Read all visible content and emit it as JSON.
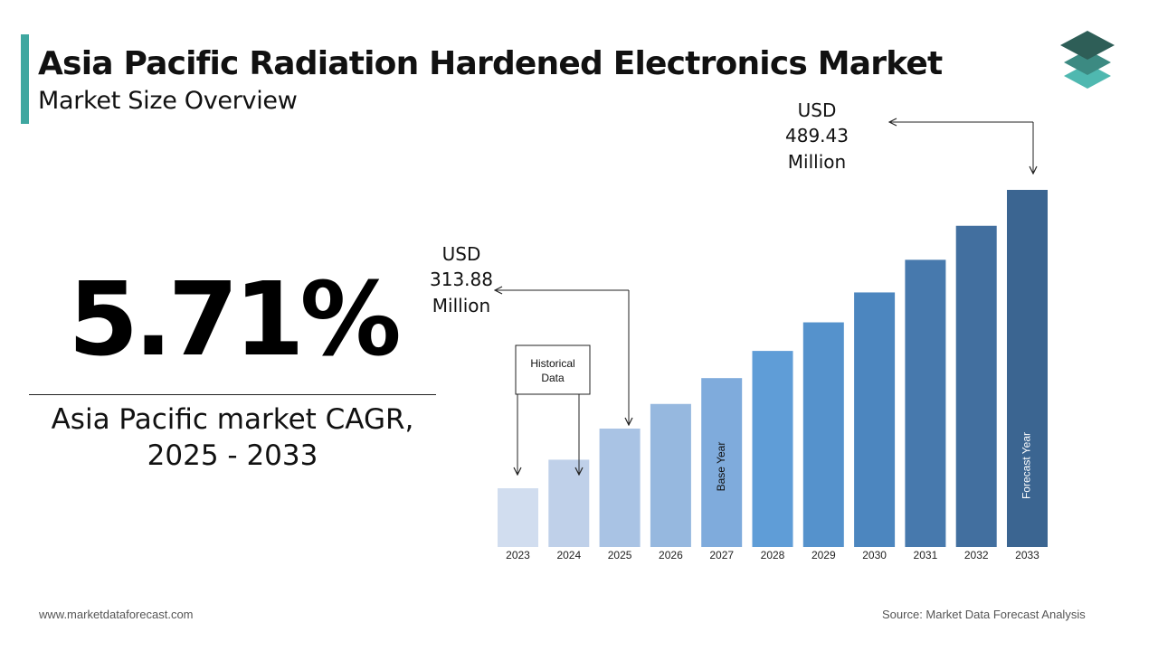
{
  "header": {
    "title": "Asia Pacific Radiation Hardened Electronics Market",
    "subtitle": "Market Size Overview",
    "accent_color": "#3fa7a0"
  },
  "logo": {
    "icon": "stacked-layers-icon",
    "colors": [
      "#2e5e57",
      "#3c8a82",
      "#4fb8b0"
    ]
  },
  "cagr": {
    "value": "5.71%",
    "label_line1": "Asia Pacific market CAGR,",
    "label_line2": "2025 - 2033"
  },
  "chart_data": {
    "type": "bar",
    "categories": [
      "2023",
      "2024",
      "2025",
      "2026",
      "2027",
      "2028",
      "2029",
      "2030",
      "2031",
      "2032",
      "2033"
    ],
    "values": [
      270.0,
      291.0,
      313.88,
      332.0,
      351.0,
      371.0,
      392.0,
      414.0,
      438.0,
      463.0,
      489.43
    ],
    "colors": [
      "#d1ddef",
      "#bfd0e9",
      "#a9c3e4",
      "#96b8df",
      "#7fabdc",
      "#5f9dd7",
      "#5592cc",
      "#4c86bf",
      "#4779ad",
      "#426f9f",
      "#3b6591"
    ],
    "bar_labels": {
      "2027": "Base Year",
      "2033": "Forecast Year"
    },
    "callouts": [
      {
        "year": "2025",
        "line1": "USD",
        "line2": "313.88",
        "line3": "Million"
      },
      {
        "year": "2033",
        "line1": "USD",
        "line2": "489.43",
        "line3": "Million"
      }
    ],
    "historical_box": {
      "line1": "Historical",
      "line2": "Data",
      "years": [
        "2023",
        "2024"
      ]
    },
    "grid": false,
    "legend": "none"
  },
  "footer": {
    "website": "www.marketdataforecast.com",
    "source": "Source: Market Data Forecast Analysis"
  }
}
